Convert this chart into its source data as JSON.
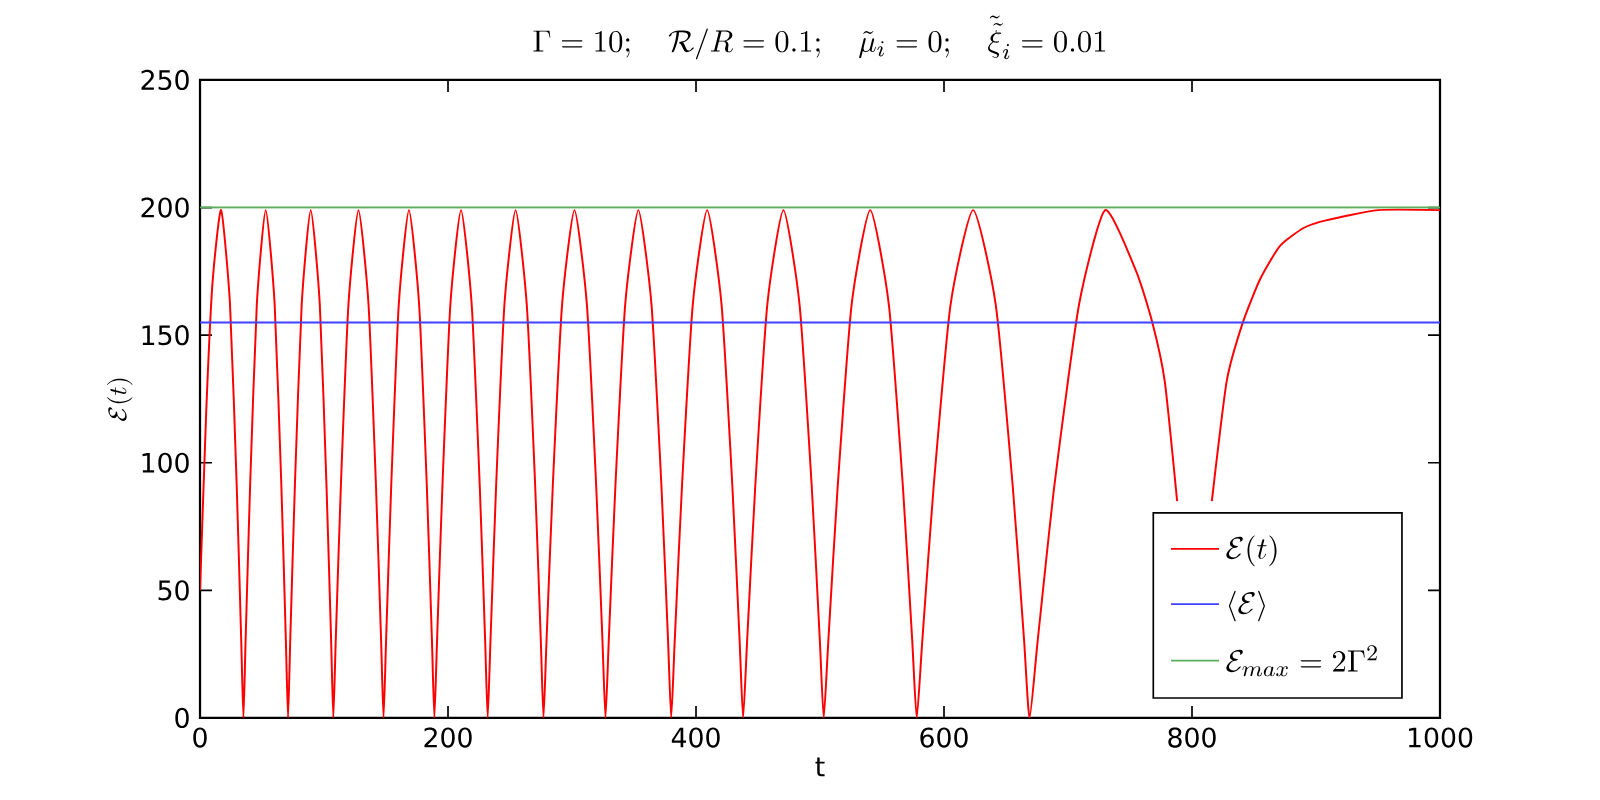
{
  "chart_data": {
    "type": "line",
    "title": "\\Gamma=10;\\quad \\mathcal{R}/R=0.1;\\quad \\tilde{\\mu}_i=0;\\quad \\tilde{\\tilde{\\xi}}_i=0.01",
    "xlabel": "t",
    "ylabel": "\\mathcal{E}(t)",
    "xlim": [
      0,
      1000
    ],
    "ylim": [
      0,
      250
    ],
    "xticks": [
      0,
      200,
      400,
      600,
      800,
      1000
    ],
    "yticks": [
      0,
      50,
      100,
      150,
      200,
      250
    ],
    "grid": false,
    "legend": "bottom right",
    "marker": "none",
    "line_style": "solid",
    "series": [
      {
        "name": "\\mathcal{E}(t)",
        "color": "#ff0000",
        "x": [
          0,
          5,
          10,
          17,
          24.2,
          29.6,
          33.2,
          35,
          36.8,
          40.4,
          45.8,
          53,
          60.2,
          65.6,
          69.2,
          71,
          72.8,
          76.5,
          82,
          89.3,
          96.6,
          102,
          105.7,
          107.5,
          109.5,
          113.6,
          119.7,
          127.8,
          135.9,
          141.9,
          146,
          148,
          150.1,
          154.2,
          160.3,
          168.5,
          176.7,
          182.9,
          187,
          189,
          191.2,
          195.5,
          201.9,
          210.5,
          219.1,
          225.6,
          229.9,
          232,
          234.3,
          238.8,
          245.5,
          254.5,
          263.5,
          270.3,
          274.8,
          277,
          279.5,
          284.5,
          292,
          302,
          312,
          319.5,
          324.5,
          327,
          329.7,
          335,
          342.9,
          353.5,
          364.1,
          372.1,
          377.4,
          380,
          382.9,
          388.7,
          397.4,
          409,
          420.6,
          429.3,
          435.1,
          438,
          441.3,
          447.8,
          457.5,
          470.5,
          483.5,
          493.3,
          499.8,
          503,
          506.8,
          514.3,
          525.5,
          540.5,
          555.5,
          566.8,
          574.3,
          578,
          582.6,
          591.7,
          605.3,
          623.5,
          641.7,
          655.4,
          664.5,
          669,
          675.7,
          689,
          708.9,
          730,
          755,
          768,
          778,
          788,
          802,
          816,
          828,
          841,
          855,
          871,
          890,
          908,
          950,
          1000
        ],
        "values": [
          50,
          120,
          170,
          199,
          162,
          91,
          31,
          0,
          31,
          91,
          162,
          199,
          162,
          91,
          31,
          0,
          31,
          91,
          162,
          199,
          162,
          91,
          31,
          0,
          31,
          91,
          162,
          199,
          162,
          91,
          31,
          0,
          31,
          91,
          162,
          199,
          162,
          91,
          31,
          0,
          31,
          91,
          162,
          199,
          162,
          91,
          31,
          0,
          31,
          91,
          162,
          199,
          162,
          91,
          31,
          0,
          31,
          91,
          162,
          199,
          162,
          91,
          31,
          0,
          31,
          91,
          162,
          199,
          162,
          91,
          31,
          0,
          31,
          91,
          162,
          199,
          162,
          91,
          31,
          0,
          31,
          91,
          162,
          199,
          162,
          91,
          31,
          0,
          31,
          91,
          162,
          199,
          162,
          91,
          31,
          0,
          31,
          91,
          162,
          199,
          162,
          91,
          31,
          0,
          31,
          91,
          162,
          199,
          175,
          155,
          132,
          85,
          null,
          85,
          132,
          155,
          172,
          185,
          192,
          195,
          199,
          199
        ]
      },
      {
        "name": "\\langle\\mathcal{E}\\rangle",
        "color": "#4040ff",
        "x": [
          0,
          1000
        ],
        "values": [
          155,
          155
        ]
      },
      {
        "name": "\\mathcal{E}_{max}=2\\Gamma^2",
        "color": "#5cae5c",
        "x": [
          0,
          1000
        ],
        "values": [
          200,
          200
        ]
      }
    ]
  }
}
